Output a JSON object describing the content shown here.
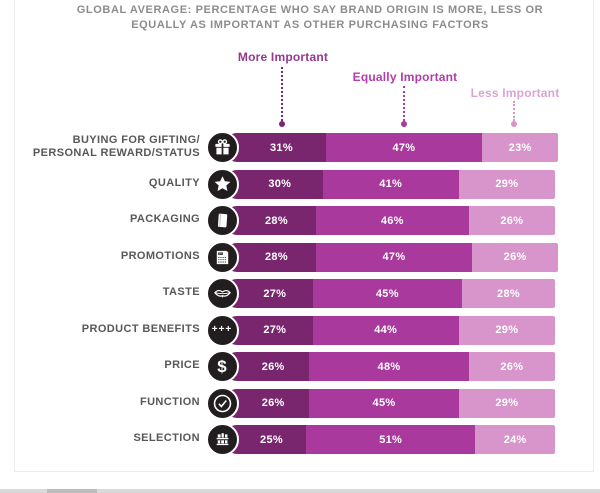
{
  "title_line1": "GLOBAL AVERAGE: PERCENTAGE WHO SAY BRAND ORIGIN IS MORE, LESS OR",
  "title_line2": "EQUALLY AS IMPORTANT AS OTHER PURCHASING FACTORS",
  "chart_data": {
    "type": "bar",
    "stacked": true,
    "orientation": "horizontal",
    "unit": "%",
    "legend_position": "top",
    "series": [
      {
        "name": "More Important",
        "color": "#79266E",
        "label_color": "#93398E"
      },
      {
        "name": "Equally Important",
        "color": "#A9399C",
        "label_color": "#B13CAB"
      },
      {
        "name": "Less Important",
        "color": "#D795CB",
        "label_color": "#DCA4D6"
      }
    ],
    "rows": [
      {
        "label_lines": [
          "BUYING FOR GIFTING/",
          "PERSONAL REWARD/STATUS"
        ],
        "icon": "gift-icon",
        "values": [
          31,
          47,
          23
        ]
      },
      {
        "label_lines": [
          "QUALITY"
        ],
        "icon": "star-icon",
        "values": [
          30,
          41,
          29
        ]
      },
      {
        "label_lines": [
          "PACKAGING"
        ],
        "icon": "package-icon",
        "values": [
          28,
          46,
          26
        ]
      },
      {
        "label_lines": [
          "PROMOTIONS"
        ],
        "icon": "promotions-icon",
        "values": [
          28,
          47,
          26
        ]
      },
      {
        "label_lines": [
          "TASTE"
        ],
        "icon": "taste-icon",
        "values": [
          27,
          45,
          28
        ]
      },
      {
        "label_lines": [
          "PRODUCT BENEFITS"
        ],
        "icon": "plus-plus-plus-icon",
        "values": [
          27,
          44,
          29
        ]
      },
      {
        "label_lines": [
          "PRICE"
        ],
        "icon": "dollar-icon",
        "values": [
          26,
          48,
          26
        ]
      },
      {
        "label_lines": [
          "FUNCTION"
        ],
        "icon": "check-icon",
        "values": [
          26,
          45,
          29
        ]
      },
      {
        "label_lines": [
          "SELECTION"
        ],
        "icon": "selection-icon",
        "values": [
          25,
          51,
          24
        ]
      }
    ],
    "value_suffix": "%",
    "icon_circle_color": "#221E1F"
  }
}
